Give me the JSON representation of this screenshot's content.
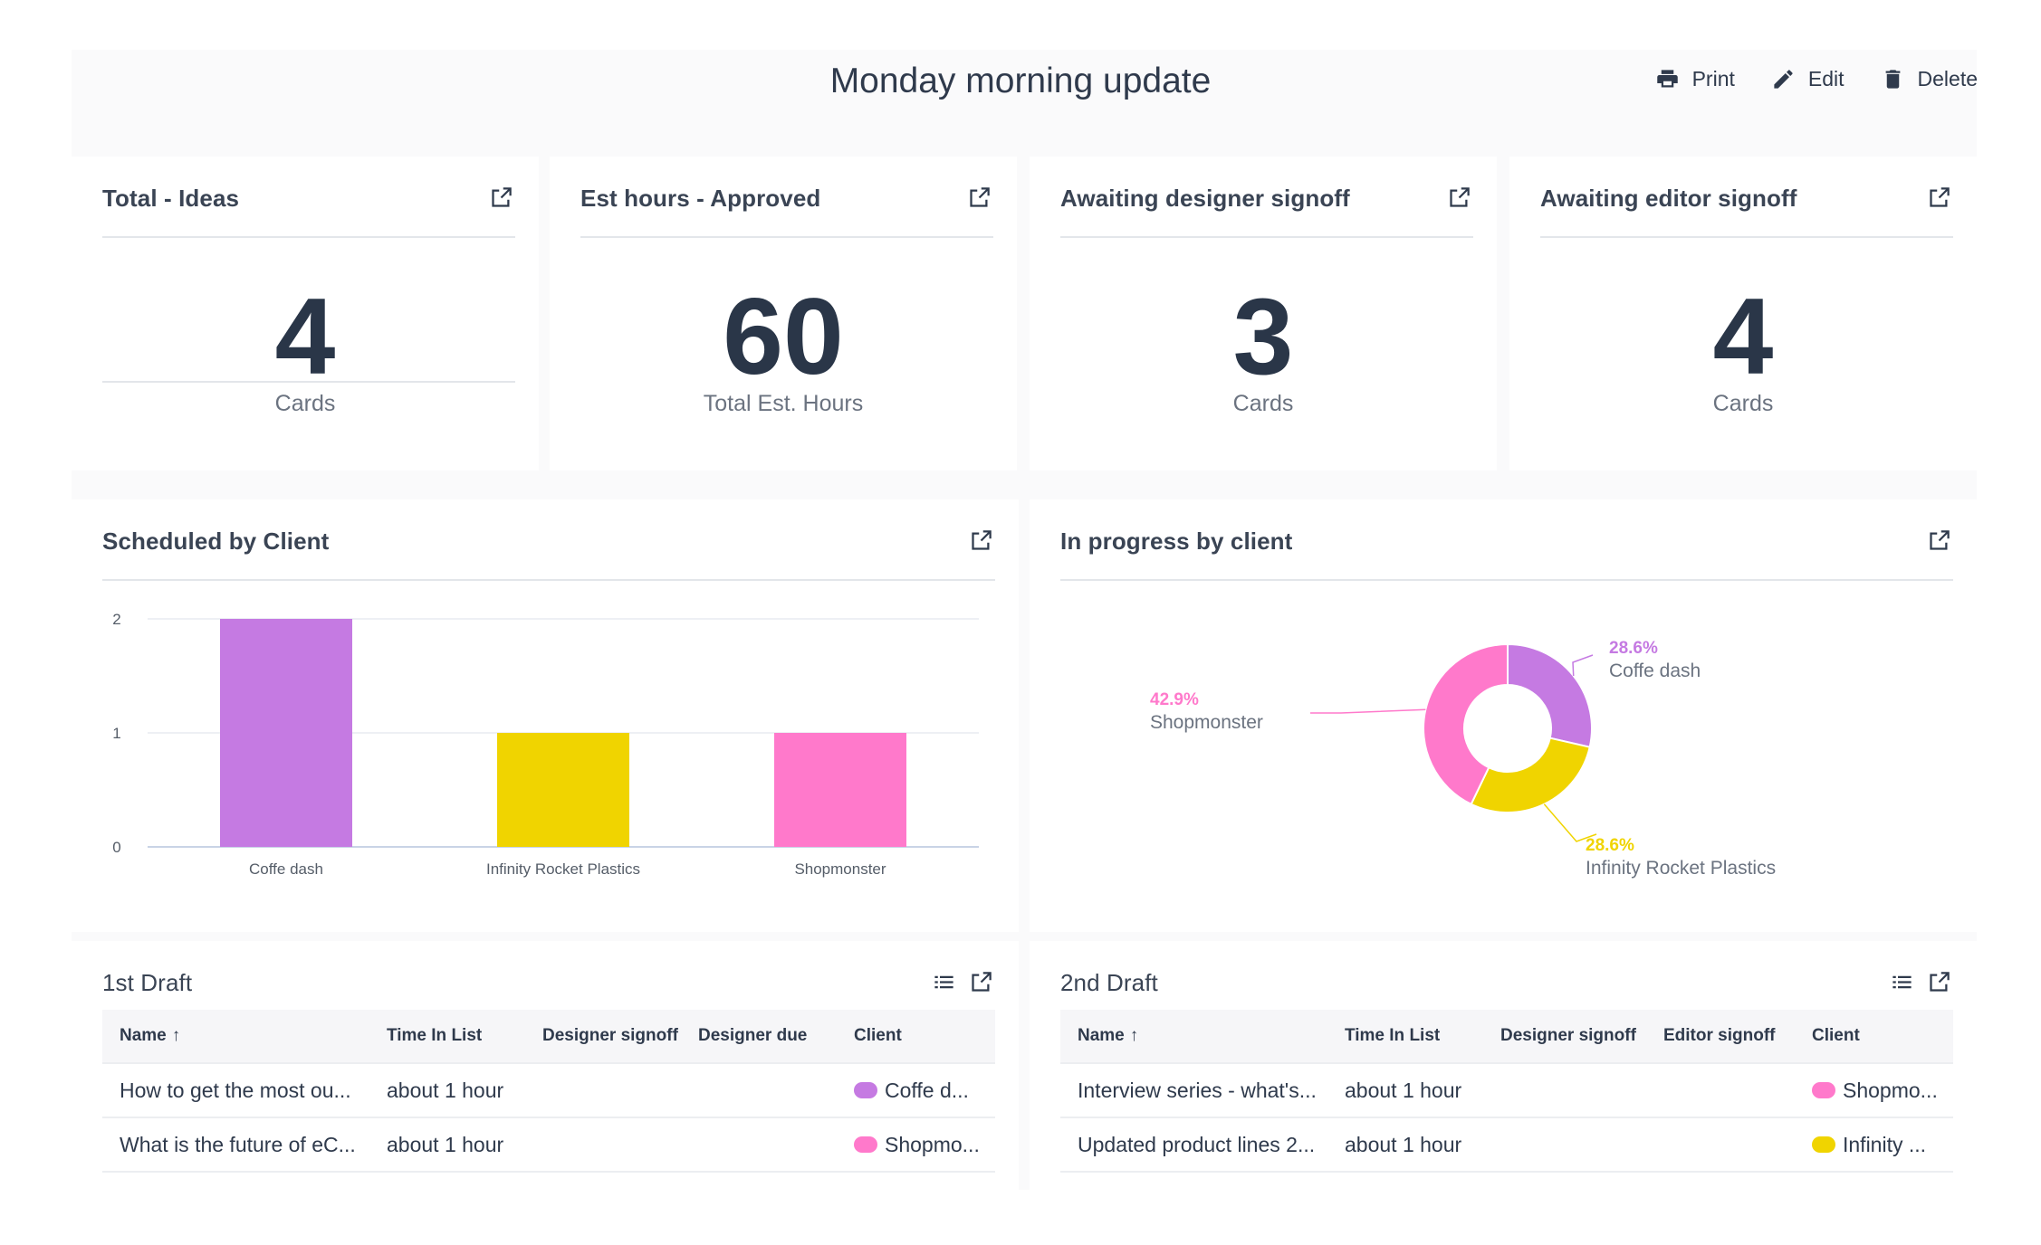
{
  "page": {
    "title": "Monday morning update",
    "actions": {
      "print": "Print",
      "edit": "Edit",
      "delete": "Delete"
    }
  },
  "kpis": [
    {
      "title": "Total - Ideas",
      "value": "4",
      "label": "Cards"
    },
    {
      "title": "Est hours - Approved",
      "value": "60",
      "label": "Total Est. Hours"
    },
    {
      "title": "Awaiting designer signoff",
      "value": "3",
      "label": "Cards"
    },
    {
      "title": "Awaiting editor signoff",
      "value": "4",
      "label": "Cards"
    }
  ],
  "bar_card": {
    "title": "Scheduled by Client"
  },
  "pie_card": {
    "title": "In progress by client"
  },
  "colors": {
    "coffe_dash": "#c57ae2",
    "infinity": "#f0d400",
    "shopmonster": "#ff79cb"
  },
  "chart_data": [
    {
      "type": "bar",
      "title": "Scheduled by Client",
      "categories": [
        "Coffe dash",
        "Infinity Rocket Plastics",
        "Shopmonster"
      ],
      "values": [
        2,
        1,
        1
      ],
      "colors": [
        "#c57ae2",
        "#f0d400",
        "#ff79cb"
      ],
      "yticks": [
        "0",
        "1",
        "2"
      ],
      "ylim": [
        0,
        2
      ],
      "grid": true
    },
    {
      "type": "pie",
      "title": "In progress by client",
      "slices": [
        {
          "label": "Coffe dash",
          "value": 28.6,
          "pct": "28.6%",
          "color": "#c57ae2"
        },
        {
          "label": "Infinity Rocket Plastics",
          "value": 28.6,
          "pct": "28.6%",
          "color": "#f0d400"
        },
        {
          "label": "Shopmonster",
          "value": 42.9,
          "pct": "42.9%",
          "color": "#ff79cb"
        }
      ]
    }
  ],
  "tables": [
    {
      "title": "1st Draft",
      "columns": [
        "Name",
        "Time In List",
        "Designer signoff",
        "Designer due",
        "Client"
      ],
      "sort_icon": "↑",
      "rows": [
        {
          "name": "How to get the most ou...",
          "time": "about 1 hour",
          "c3": "",
          "c4": "",
          "client": "Coffe d...",
          "client_color": "#c57ae2"
        },
        {
          "name": "What is the future of eC...",
          "time": "about 1 hour",
          "c3": "",
          "c4": "",
          "client": "Shopmo...",
          "client_color": "#ff79cb"
        }
      ]
    },
    {
      "title": "2nd Draft",
      "columns": [
        "Name",
        "Time In List",
        "Designer signoff",
        "Editor signoff",
        "Client"
      ],
      "sort_icon": "↑",
      "rows": [
        {
          "name": "Interview series - what's...",
          "time": "about 1 hour",
          "c3": "",
          "c4": "",
          "client": "Shopmo...",
          "client_color": "#ff79cb"
        },
        {
          "name": "Updated product lines 2...",
          "time": "about 1 hour",
          "c3": "",
          "c4": "",
          "client": "Infinity ...",
          "client_color": "#f0d400"
        }
      ]
    }
  ],
  "icons": {
    "print": "printer-icon",
    "edit": "pencil-icon",
    "delete": "trash-icon",
    "open": "open-external-icon",
    "list": "list-icon"
  }
}
